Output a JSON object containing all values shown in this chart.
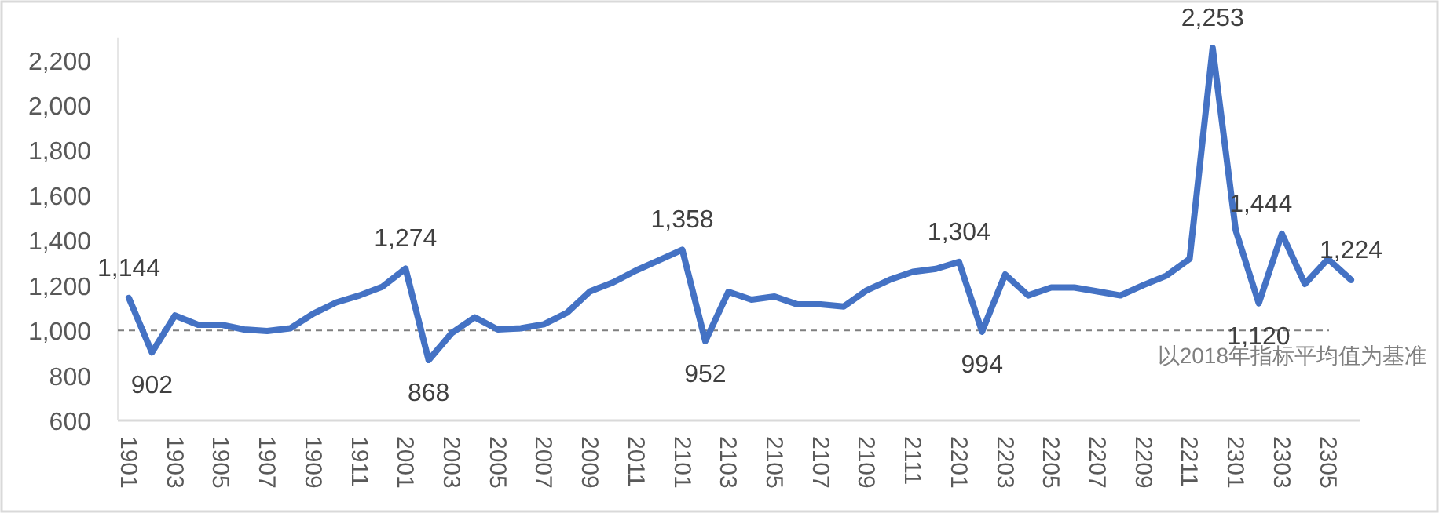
{
  "chart_data": {
    "type": "line",
    "categories": [
      "1901",
      null,
      "1903",
      null,
      "1905",
      null,
      "1907",
      null,
      "1909",
      null,
      "1911",
      null,
      "2001",
      null,
      "2003",
      null,
      "2005",
      null,
      "2007",
      null,
      "2009",
      null,
      "2011",
      null,
      "2101",
      null,
      "2103",
      null,
      "2105",
      null,
      "2107",
      null,
      "2109",
      null,
      "2111",
      null,
      "2201",
      null,
      "2203",
      null,
      "2205",
      null,
      "2207",
      null,
      "2209",
      null,
      "2211",
      null,
      "2301",
      null,
      "2303",
      null,
      "2305",
      null
    ],
    "series": [
      {
        "color": "#4472c4",
        "values": [
          1144,
          902,
          1066,
          1025,
          1025,
          1004,
          997,
          1009,
          1074,
          1124,
          1155,
          1194,
          1274,
          868,
          988,
          1058,
          1004,
          1009,
          1027,
          1078,
          1173,
          1213,
          1266,
          1312,
          1358,
          952,
          1171,
          1136,
          1150,
          1115,
          1115,
          1106,
          1178,
          1225,
          1260,
          1273,
          1304,
          994,
          1248,
          1155,
          1190,
          1190,
          1173,
          1155,
          1201,
          1243,
          1317,
          2253,
          1444,
          1120,
          1429,
          1206,
          1317,
          1224
        ],
        "value_labels": [
          "1,144",
          "902",
          null,
          null,
          null,
          null,
          null,
          null,
          null,
          null,
          null,
          null,
          "1,274",
          "868",
          null,
          null,
          null,
          null,
          null,
          null,
          null,
          null,
          null,
          null,
          "1,358",
          "952",
          null,
          null,
          null,
          null,
          null,
          null,
          null,
          null,
          null,
          null,
          "1,304",
          "994",
          null,
          null,
          null,
          null,
          null,
          null,
          null,
          null,
          null,
          "2,253",
          "1,444",
          "1,120",
          null,
          null,
          null,
          "1,224"
        ]
      }
    ],
    "ylim": [
      600,
      2300
    ],
    "yticks": [
      {
        "value": 600,
        "label": "600"
      },
      {
        "value": 800,
        "label": "800"
      },
      {
        "value": 1000,
        "label": "1,000"
      },
      {
        "value": 1200,
        "label": "1,200"
      },
      {
        "value": 1400,
        "label": "1,400"
      },
      {
        "value": 1600,
        "label": "1,600"
      },
      {
        "value": 1800,
        "label": "1,800"
      },
      {
        "value": 2000,
        "label": "2,000"
      },
      {
        "value": 2200,
        "label": "2,200"
      }
    ],
    "ref_lines": [
      {
        "axis": "y",
        "value": 1000,
        "label": "以2018年指标平均值为基准",
        "color": "#7f7f7f",
        "line_style": "dashed"
      }
    ],
    "grid": false,
    "marker": "none",
    "line_style": "solid"
  }
}
